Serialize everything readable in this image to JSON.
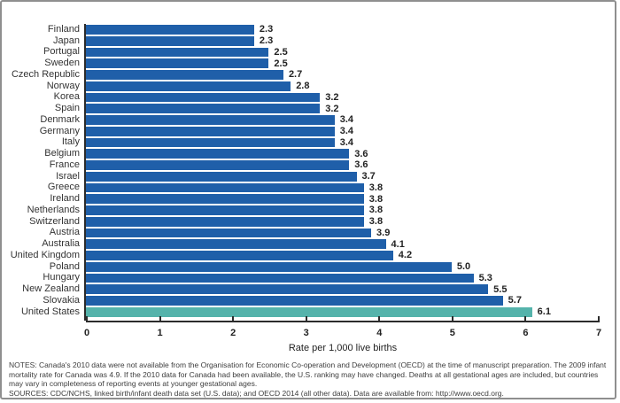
{
  "chart_data": {
    "type": "bar",
    "orientation": "horizontal",
    "categories": [
      "Finland",
      "Japan",
      "Portugal",
      "Sweden",
      "Czech Republic",
      "Norway",
      "Korea",
      "Spain",
      "Denmark",
      "Germany",
      "Italy",
      "Belgium",
      "France",
      "Israel",
      "Greece",
      "Ireland",
      "Netherlands",
      "Switzerland",
      "Austria",
      "Australia",
      "United Kingdom",
      "Poland",
      "Hungary",
      "New Zealand",
      "Slovakia",
      "United States"
    ],
    "values": [
      2.3,
      2.3,
      2.5,
      2.5,
      2.7,
      2.8,
      3.2,
      3.2,
      3.4,
      3.4,
      3.4,
      3.6,
      3.6,
      3.7,
      3.8,
      3.8,
      3.8,
      3.8,
      3.9,
      4.1,
      4.2,
      5.0,
      5.3,
      5.5,
      5.7,
      6.1
    ],
    "value_labels": [
      "2.3",
      "2.3",
      "2.5",
      "2.5",
      "2.7",
      "2.8",
      "3.2",
      "3.2",
      "3.4",
      "3.4",
      "3.4",
      "3.6",
      "3.6",
      "3.7",
      "3.8",
      "3.8",
      "3.8",
      "3.8",
      "3.9",
      "4.1",
      "4.2",
      "5.0",
      "5.3",
      "5.5",
      "5.7",
      "6.1"
    ],
    "highlight_category": "United States",
    "bar_color": "#1f5fa9",
    "highlight_color": "#55b3ab",
    "xlabel": "Rate per 1,000 live births",
    "xlim": [
      0,
      7
    ],
    "xticks": [
      0,
      1,
      2,
      3,
      4,
      5,
      6,
      7
    ],
    "grid": false,
    "legend": false
  },
  "notes": {
    "notes_line": "NOTES: Canada's 2010 data were not available from the Organisation for Economic Co-operation and Development (OECD) at the time of manuscript preparation. The 2009 infant mortality rate for Canada was 4.9. If the 2010 data for Canada had been available, the U.S. ranking may have changed. Deaths at all gestational ages are included, but countries may vary in completeness of reporting events at younger gestational ages.",
    "sources_line": "SOURCES: CDC/NCHS, linked birth/infant death data set (U.S. data); and OECD 2014 (all other data). Data are available from: http://www.oecd.org."
  }
}
